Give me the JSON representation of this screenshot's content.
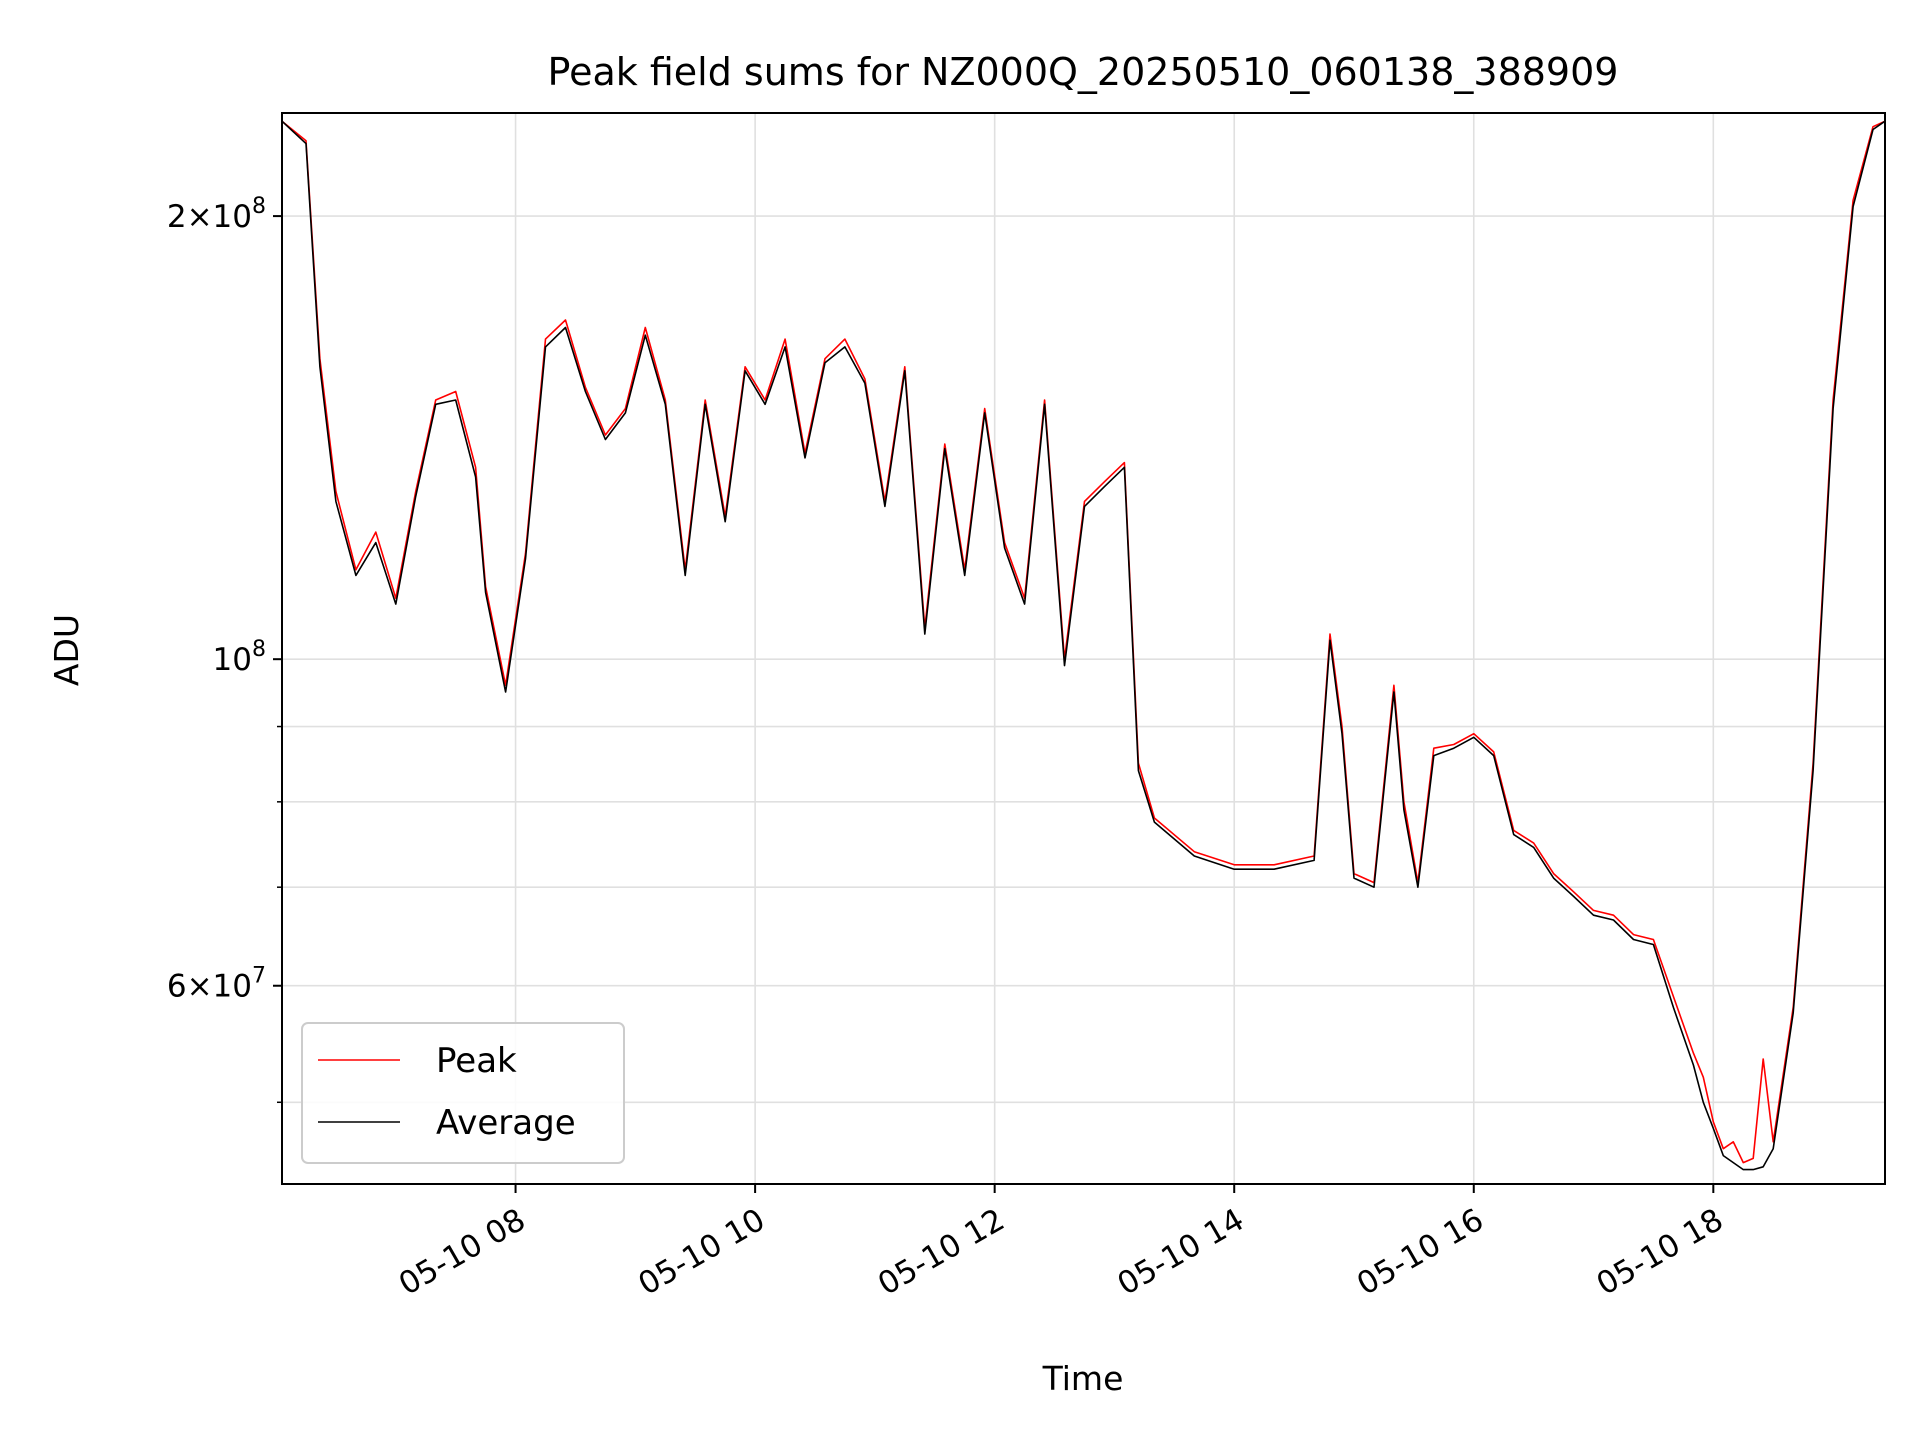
{
  "chart_data": {
    "type": "line",
    "title": "Peak field sums for NZ000Q_20250510_060138_388909",
    "xlabel": "Time",
    "ylabel": "ADU",
    "y_scale": "log",
    "ylim": [
      44000000,
      235000000
    ],
    "xlim": [
      "2025-05-10 06:03",
      "2025-05-10 19:26"
    ],
    "grid": true,
    "legend_position": "lower-left",
    "x_ticks": [
      {
        "value": "2025-05-10 08:00",
        "label": "05-10 08"
      },
      {
        "value": "2025-05-10 10:00",
        "label": "05-10 10"
      },
      {
        "value": "2025-05-10 12:00",
        "label": "05-10 12"
      },
      {
        "value": "2025-05-10 14:00",
        "label": "05-10 14"
      },
      {
        "value": "2025-05-10 16:00",
        "label": "05-10 16"
      },
      {
        "value": "2025-05-10 18:00",
        "label": "05-10 18"
      }
    ],
    "y_ticks": [
      {
        "value": 60000000,
        "base": "6",
        "exp": "7"
      },
      {
        "value": 100000000,
        "base": "",
        "exp": "8"
      },
      {
        "value": 200000000,
        "base": "2",
        "exp": "8"
      }
    ],
    "y_minor_ticks": [
      50000000,
      70000000,
      80000000,
      90000000
    ],
    "series": [
      {
        "name": "Peak",
        "color": "#ff0000",
        "x": [
          "2025-05-10 06:03",
          "2025-05-10 06:15",
          "2025-05-10 06:22",
          "2025-05-10 06:30",
          "2025-05-10 06:40",
          "2025-05-10 06:50",
          "2025-05-10 07:00",
          "2025-05-10 07:10",
          "2025-05-10 07:20",
          "2025-05-10 07:30",
          "2025-05-10 07:40",
          "2025-05-10 07:45",
          "2025-05-10 07:55",
          "2025-05-10 08:05",
          "2025-05-10 08:15",
          "2025-05-10 08:25",
          "2025-05-10 08:35",
          "2025-05-10 08:45",
          "2025-05-10 08:55",
          "2025-05-10 09:05",
          "2025-05-10 09:15",
          "2025-05-10 09:25",
          "2025-05-10 09:35",
          "2025-05-10 09:45",
          "2025-05-10 09:55",
          "2025-05-10 10:05",
          "2025-05-10 10:15",
          "2025-05-10 10:25",
          "2025-05-10 10:35",
          "2025-05-10 10:45",
          "2025-05-10 10:55",
          "2025-05-10 11:05",
          "2025-05-10 11:15",
          "2025-05-10 11:25",
          "2025-05-10 11:35",
          "2025-05-10 11:45",
          "2025-05-10 11:55",
          "2025-05-10 12:05",
          "2025-05-10 12:15",
          "2025-05-10 12:25",
          "2025-05-10 12:35",
          "2025-05-10 12:45",
          "2025-05-10 12:55",
          "2025-05-10 13:05",
          "2025-05-10 13:12",
          "2025-05-10 13:20",
          "2025-05-10 13:40",
          "2025-05-10 14:00",
          "2025-05-10 14:20",
          "2025-05-10 14:40",
          "2025-05-10 14:48",
          "2025-05-10 14:54",
          "2025-05-10 15:00",
          "2025-05-10 15:10",
          "2025-05-10 15:20",
          "2025-05-10 15:25",
          "2025-05-10 15:32",
          "2025-05-10 15:40",
          "2025-05-10 15:50",
          "2025-05-10 16:00",
          "2025-05-10 16:10",
          "2025-05-10 16:20",
          "2025-05-10 16:30",
          "2025-05-10 16:40",
          "2025-05-10 16:50",
          "2025-05-10 17:00",
          "2025-05-10 17:10",
          "2025-05-10 17:20",
          "2025-05-10 17:30",
          "2025-05-10 17:40",
          "2025-05-10 17:50",
          "2025-05-10 17:55",
          "2025-05-10 18:00",
          "2025-05-10 18:05",
          "2025-05-10 18:10",
          "2025-05-10 18:15",
          "2025-05-10 18:20",
          "2025-05-10 18:25",
          "2025-05-10 18:30",
          "2025-05-10 18:40",
          "2025-05-10 18:50",
          "2025-05-10 19:00",
          "2025-05-10 19:10",
          "2025-05-10 19:20",
          "2025-05-10 19:26"
        ],
        "values": [
          232000000,
          225000000,
          160000000,
          130000000,
          115000000,
          122000000,
          110000000,
          130000000,
          150000000,
          152000000,
          135000000,
          112000000,
          96000000,
          118000000,
          165000000,
          170000000,
          153000000,
          142000000,
          148000000,
          168000000,
          150000000,
          115000000,
          150000000,
          125000000,
          158000000,
          150000000,
          165000000,
          138000000,
          160000000,
          165000000,
          155000000,
          128000000,
          158000000,
          105000000,
          140000000,
          115000000,
          148000000,
          120000000,
          110000000,
          150000000,
          100000000,
          128000000,
          132000000,
          136000000,
          85000000,
          78000000,
          74000000,
          72500000,
          72500000,
          73500000,
          104000000,
          90000000,
          71500000,
          70500000,
          96000000,
          80000000,
          70500000,
          87000000,
          87500000,
          89000000,
          86500000,
          76500000,
          75000000,
          71500000,
          69500000,
          67500000,
          67000000,
          65000000,
          64500000,
          59000000,
          54000000,
          52000000,
          48500000,
          46500000,
          47000000,
          45500000,
          45800000,
          53500000,
          47000000,
          58000000,
          85000000,
          150000000,
          205000000,
          230000000,
          232000000
        ]
      },
      {
        "name": "Average",
        "color": "#000000",
        "x": [
          "2025-05-10 06:03",
          "2025-05-10 06:15",
          "2025-05-10 06:22",
          "2025-05-10 06:30",
          "2025-05-10 06:40",
          "2025-05-10 06:50",
          "2025-05-10 07:00",
          "2025-05-10 07:10",
          "2025-05-10 07:20",
          "2025-05-10 07:30",
          "2025-05-10 07:40",
          "2025-05-10 07:45",
          "2025-05-10 07:55",
          "2025-05-10 08:05",
          "2025-05-10 08:15",
          "2025-05-10 08:25",
          "2025-05-10 08:35",
          "2025-05-10 08:45",
          "2025-05-10 08:55",
          "2025-05-10 09:05",
          "2025-05-10 09:15",
          "2025-05-10 09:25",
          "2025-05-10 09:35",
          "2025-05-10 09:45",
          "2025-05-10 09:55",
          "2025-05-10 10:05",
          "2025-05-10 10:15",
          "2025-05-10 10:25",
          "2025-05-10 10:35",
          "2025-05-10 10:45",
          "2025-05-10 10:55",
          "2025-05-10 11:05",
          "2025-05-10 11:15",
          "2025-05-10 11:25",
          "2025-05-10 11:35",
          "2025-05-10 11:45",
          "2025-05-10 11:55",
          "2025-05-10 12:05",
          "2025-05-10 12:15",
          "2025-05-10 12:25",
          "2025-05-10 12:35",
          "2025-05-10 12:45",
          "2025-05-10 12:55",
          "2025-05-10 13:05",
          "2025-05-10 13:12",
          "2025-05-10 13:20",
          "2025-05-10 13:40",
          "2025-05-10 14:00",
          "2025-05-10 14:20",
          "2025-05-10 14:40",
          "2025-05-10 14:48",
          "2025-05-10 14:54",
          "2025-05-10 15:00",
          "2025-05-10 15:10",
          "2025-05-10 15:20",
          "2025-05-10 15:25",
          "2025-05-10 15:32",
          "2025-05-10 15:40",
          "2025-05-10 15:50",
          "2025-05-10 16:00",
          "2025-05-10 16:10",
          "2025-05-10 16:20",
          "2025-05-10 16:30",
          "2025-05-10 16:40",
          "2025-05-10 16:50",
          "2025-05-10 17:00",
          "2025-05-10 17:10",
          "2025-05-10 17:20",
          "2025-05-10 17:30",
          "2025-05-10 17:40",
          "2025-05-10 17:50",
          "2025-05-10 17:55",
          "2025-05-10 18:00",
          "2025-05-10 18:05",
          "2025-05-10 18:10",
          "2025-05-10 18:15",
          "2025-05-10 18:20",
          "2025-05-10 18:25",
          "2025-05-10 18:30",
          "2025-05-10 18:40",
          "2025-05-10 18:50",
          "2025-05-10 19:00",
          "2025-05-10 19:10",
          "2025-05-10 19:20",
          "2025-05-10 19:26"
        ],
        "values": [
          232000000,
          224000000,
          158000000,
          128000000,
          114000000,
          120000000,
          109000000,
          129000000,
          149000000,
          150000000,
          133000000,
          111000000,
          95000000,
          117000000,
          163000000,
          168000000,
          152000000,
          141000000,
          147000000,
          166000000,
          149000000,
          114000000,
          149000000,
          124000000,
          157000000,
          149000000,
          163000000,
          137000000,
          159000000,
          163000000,
          154000000,
          127000000,
          157000000,
          104000000,
          139000000,
          114000000,
          147000000,
          119000000,
          109000000,
          149000000,
          99000000,
          127000000,
          131000000,
          135000000,
          84000000,
          77500000,
          73500000,
          72000000,
          72000000,
          73000000,
          103000000,
          89000000,
          71000000,
          70000000,
          95000000,
          79000000,
          70000000,
          86000000,
          87000000,
          88500000,
          86000000,
          76000000,
          74500000,
          71000000,
          69000000,
          67000000,
          66500000,
          64500000,
          64000000,
          58000000,
          53000000,
          50000000,
          48000000,
          46000000,
          45500000,
          45000000,
          45000000,
          45200000,
          46500000,
          57500000,
          84000000,
          148000000,
          203000000,
          229000000,
          232000000
        ]
      }
    ]
  }
}
